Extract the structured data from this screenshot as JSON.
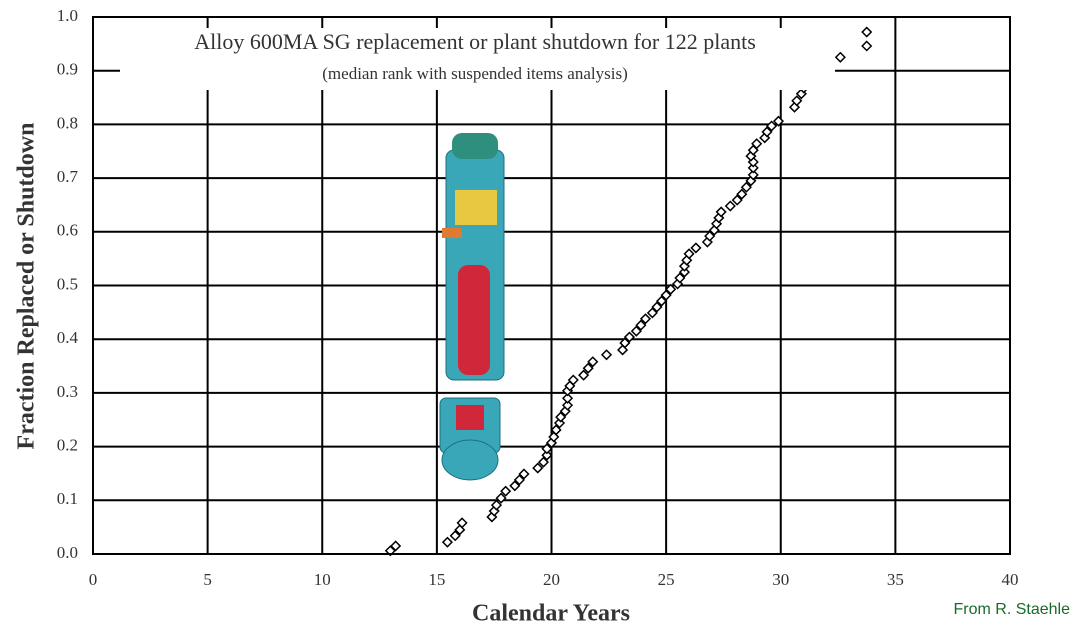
{
  "chart_data": {
    "type": "scatter",
    "title": "Alloy 600MA SG replacement or plant shutdown for 122 plants",
    "subtitle": "(median rank with suspended items analysis)",
    "x_label": "Calendar Years",
    "y_label": "Fraction Replaced or Shutdown",
    "source": "From R. Staehle",
    "color": "#000000",
    "grid": true,
    "xlim": [
      0,
      40
    ],
    "ylim": [
      0,
      1
    ],
    "xticks": [
      0,
      5,
      10,
      15,
      20,
      25,
      30,
      35,
      40
    ],
    "yticks": [
      {
        "value": 0,
        "label": "0.0"
      },
      {
        "value": 0.1,
        "label": "0.1"
      },
      {
        "value": 0.2,
        "label": "0.2"
      },
      {
        "value": 0.3,
        "label": "0.3"
      },
      {
        "value": 0.4,
        "label": "0.4"
      },
      {
        "value": 0.5,
        "label": "0.5"
      },
      {
        "value": 0.6,
        "label": "0.6"
      },
      {
        "value": 0.7,
        "label": "0.7"
      },
      {
        "value": 0.8,
        "label": "0.8"
      },
      {
        "value": 0.9,
        "label": "0.9"
      },
      {
        "value": 1,
        "label": "1.0"
      }
    ],
    "x": [
      12.97,
      13.2,
      15.46,
      15.8,
      16.0,
      16.1,
      17.4,
      17.5,
      17.6,
      17.8,
      18.0,
      18.4,
      18.6,
      18.8,
      19.4,
      19.65,
      19.8,
      19.8,
      20.0,
      20.1,
      20.2,
      20.35,
      20.4,
      20.6,
      20.7,
      20.7,
      20.7,
      20.8,
      20.95,
      21.4,
      21.6,
      21.8,
      22.4,
      23.1,
      23.2,
      23.4,
      23.7,
      23.9,
      24.1,
      24.4,
      24.6,
      24.8,
      25.0,
      25.2,
      25.5,
      25.6,
      25.8,
      25.8,
      25.9,
      26.0,
      26.3,
      26.8,
      26.9,
      27.1,
      27.2,
      27.3,
      27.4,
      27.8,
      28.1,
      28.3,
      28.5,
      28.7,
      28.8,
      28.8,
      28.8,
      28.7,
      28.8,
      28.95,
      29.3,
      29.4,
      29.6,
      29.9,
      30.6,
      30.7,
      30.9,
      31.0,
      31.3,
      31.8,
      32.6,
      33.75,
      33.75
    ],
    "values": [
      0.006,
      0.015,
      0.022,
      0.034,
      0.045,
      0.058,
      0.069,
      0.08,
      0.091,
      0.104,
      0.117,
      0.127,
      0.138,
      0.149,
      0.16,
      0.171,
      0.184,
      0.196,
      0.207,
      0.218,
      0.231,
      0.244,
      0.255,
      0.266,
      0.277,
      0.29,
      0.304,
      0.313,
      0.324,
      0.333,
      0.346,
      0.358,
      0.371,
      0.38,
      0.393,
      0.404,
      0.415,
      0.426,
      0.438,
      0.449,
      0.46,
      0.471,
      0.482,
      0.493,
      0.503,
      0.514,
      0.525,
      0.536,
      0.547,
      0.559,
      0.57,
      0.581,
      0.592,
      0.603,
      0.615,
      0.626,
      0.637,
      0.648,
      0.659,
      0.67,
      0.683,
      0.695,
      0.706,
      0.719,
      0.73,
      0.741,
      0.752,
      0.764,
      0.775,
      0.786,
      0.797,
      0.806,
      0.832,
      0.844,
      0.857,
      0.868,
      0.883,
      0.905,
      0.925,
      0.946,
      0.972
    ]
  }
}
